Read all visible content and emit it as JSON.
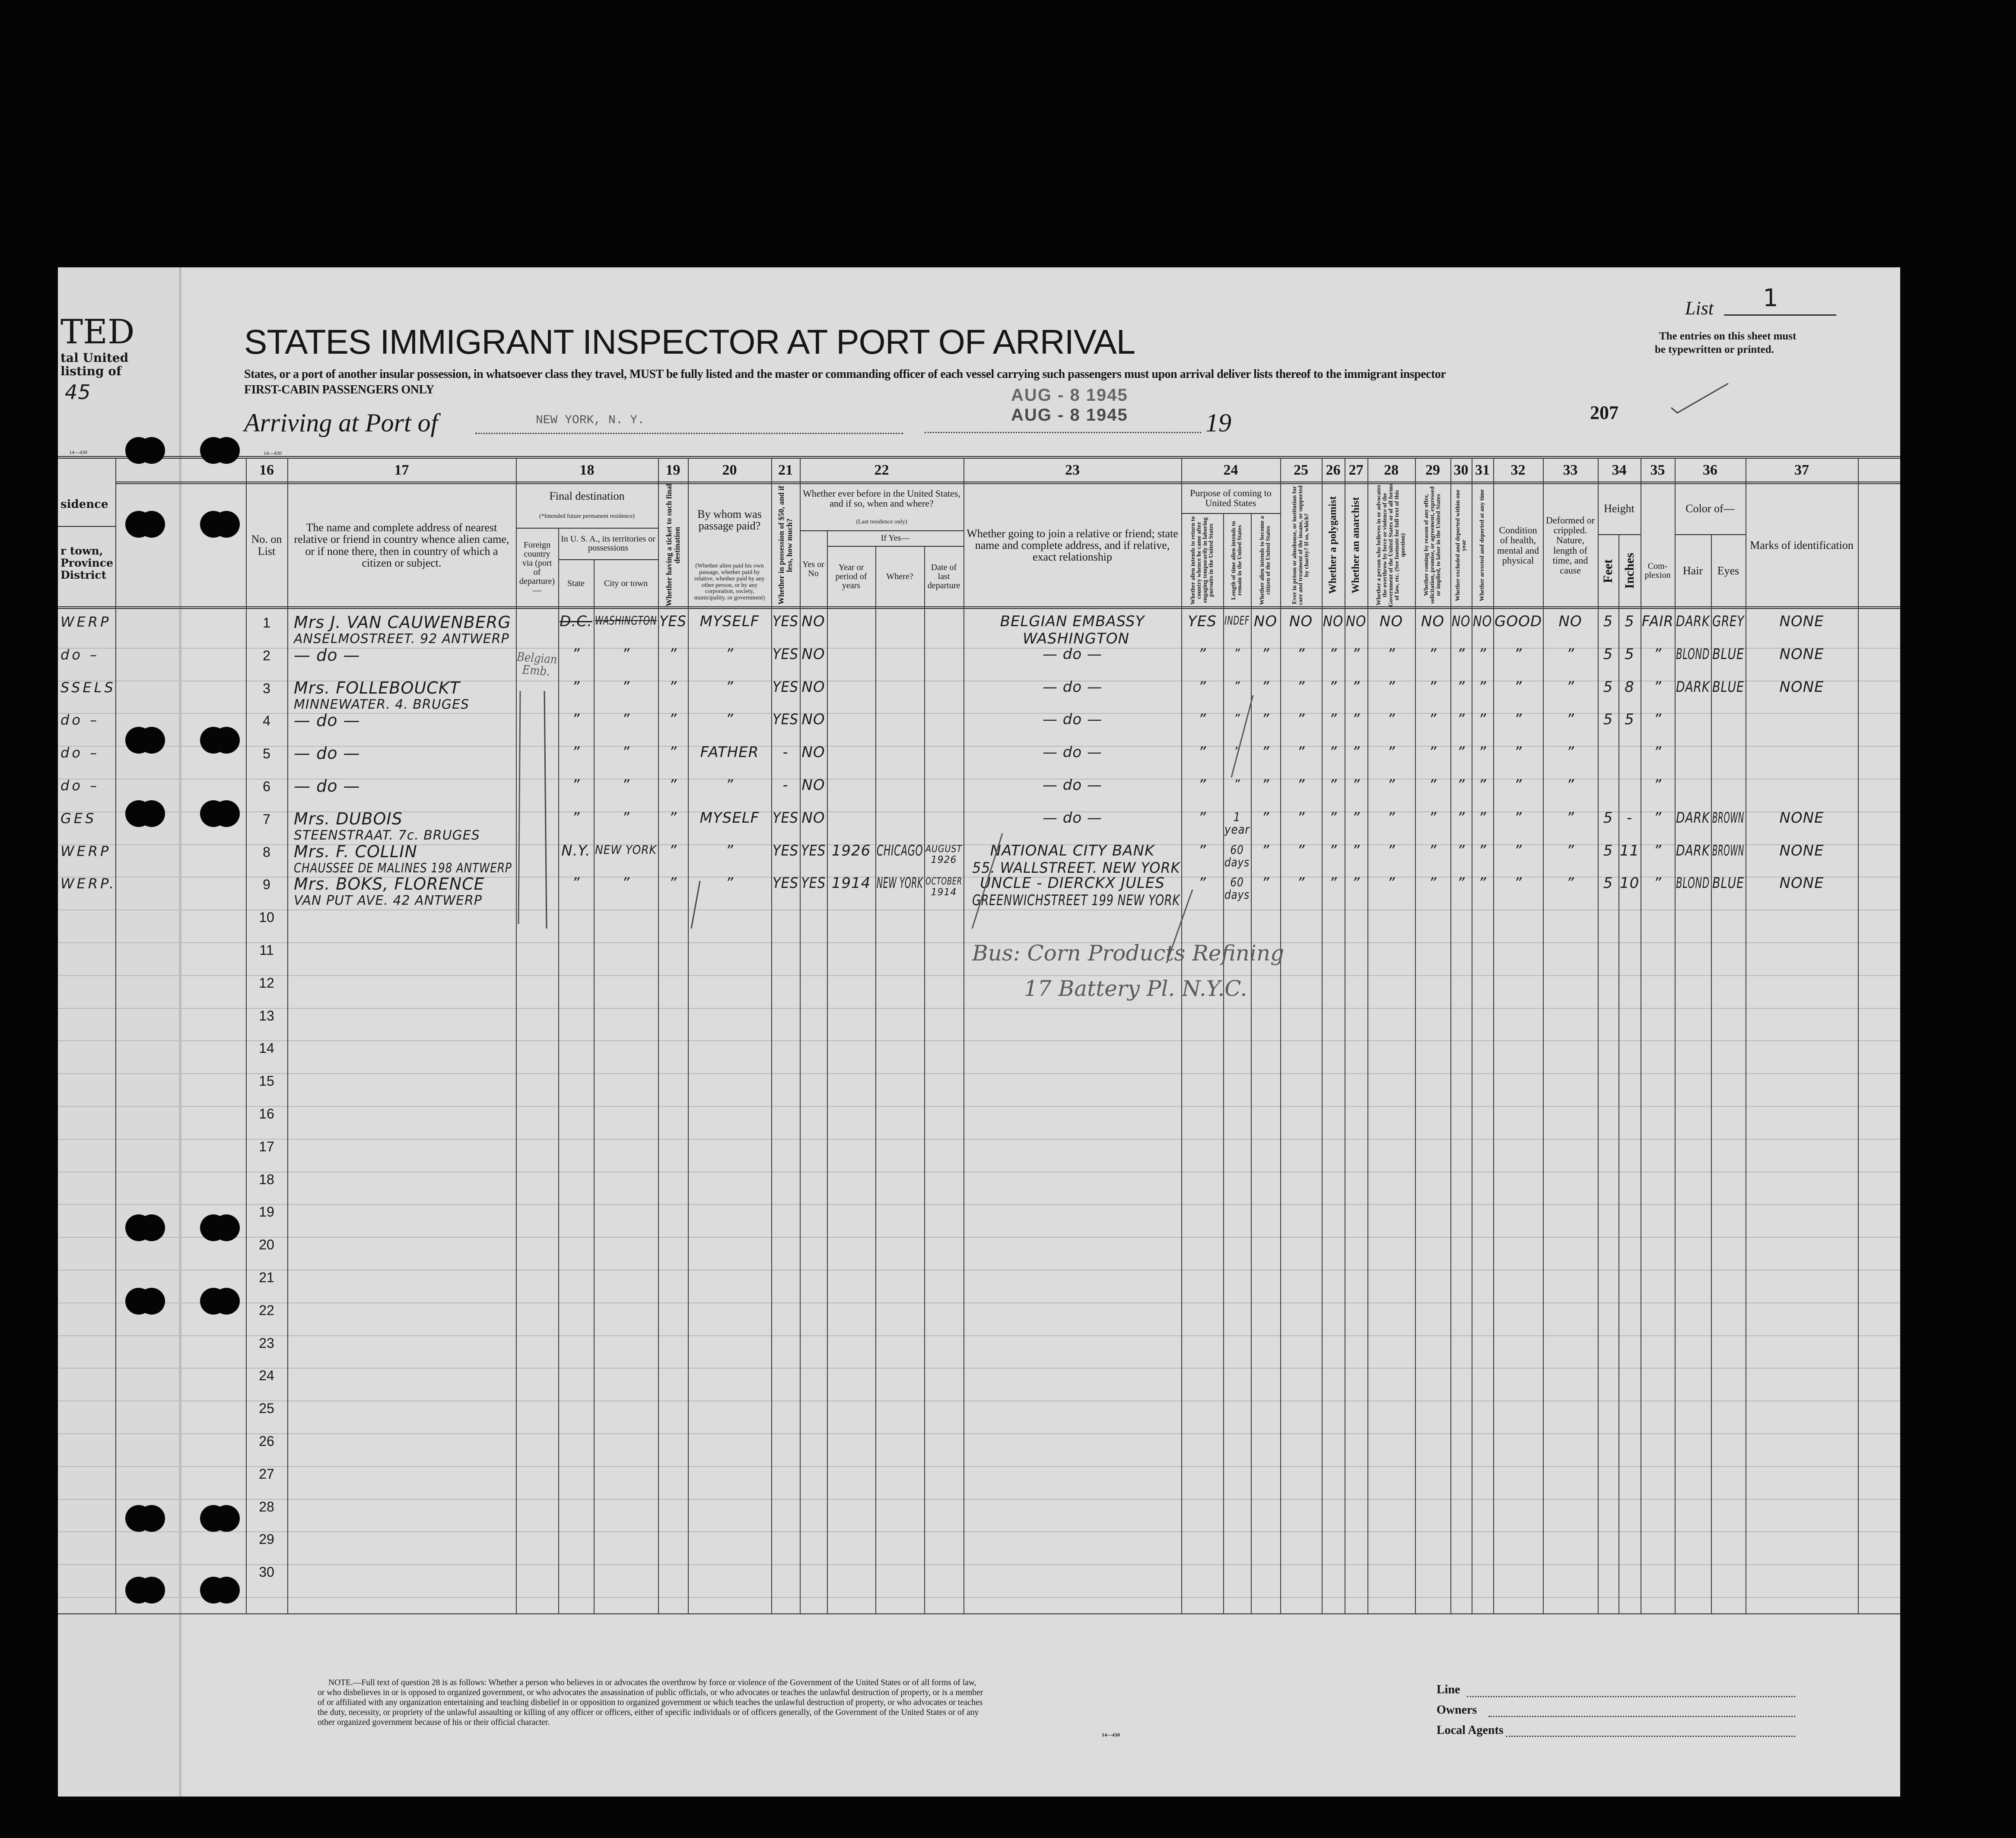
{
  "header": {
    "title": "STATES IMMIGRANT INSPECTOR AT PORT OF ARRIVAL",
    "instructions": "States, or a port of another insular possession, in whatsoever class they travel, MUST be fully listed and the master or commanding officer of each vessel carrying such passengers must upon arrival deliver lists thereof to the immigrant inspector",
    "class_note": "FIRST-CABIN PASSENGERS ONLY",
    "arriving_label": "Arriving at Port of",
    "port": "NEW YORK, N. Y.",
    "year_prefix": "19",
    "stamps": [
      "AUG - 8 1945",
      "AUG - 8 1945"
    ],
    "page_number": "207",
    "list_label": "List",
    "list_number": "1",
    "entries_note": [
      "The entries on this sheet must",
      "be typewritten or printed."
    ],
    "form_code": "14—430"
  },
  "left_fragment": {
    "title": "TED",
    "lines": [
      "tal United",
      "listing of"
    ],
    "year": "45",
    "form_code": "14—430",
    "col_header": [
      "sidence",
      "r town,",
      "Province",
      "District"
    ],
    "rows": [
      "WERP",
      "do –",
      "SSELS",
      "do –",
      "do –",
      "do –",
      "GES",
      "WERP",
      "WERP."
    ]
  },
  "columns": {
    "c16": {
      "num": "16",
      "label": "No. on List"
    },
    "c17": {
      "num": "17",
      "label": "The name and complete address of nearest relative or friend in country whence alien came, or if none there, then in country of which a citizen or subject."
    },
    "c18": {
      "num": "18",
      "label": "Final destination",
      "note": "(*Intended future permanent residence)",
      "foreign": "Foreign country via (port of departure)—",
      "usa": "In U. S. A., its territories or possessions",
      "state": "State",
      "city": "City or town"
    },
    "c19": {
      "num": "19",
      "label": "Whether having a ticket to such final destination"
    },
    "c20": {
      "num": "20",
      "label": "By whom was passage paid?",
      "note": "(Whether alien paid his own passage, whether paid by relative, whether paid by any other person, or by any corporation, society, municipality, or government)"
    },
    "c21": {
      "num": "21",
      "label": "Whether in possession of $50, and if less, how much?"
    },
    "c22": {
      "num": "22",
      "label": "Whether ever before in the United States, and if so, when and where?",
      "note": "(Last residence only)",
      "yes_no": "Yes or No",
      "if_yes": "If Yes—",
      "year": "Year or period of years",
      "where": "Where?",
      "date": "Date of last departure"
    },
    "c23": {
      "num": "23",
      "label": "Whether going to join a relative or friend; state name and complete address, and if relative, exact relationship"
    },
    "c24": {
      "num": "24",
      "label": "Purpose of coming to United States",
      "a": "Whether alien intends to return to country whence he came after engaging temporarily in laboring pursuits in the United States",
      "b": "Length of time alien intends to remain in the United States",
      "c": "Whether alien intends to become a citizen of the United States"
    },
    "c25": {
      "num": "25",
      "label": "Ever in prison or almshouse, or institution for care and treatment of the insane, or supported by charity? If so, which?"
    },
    "c26": {
      "num": "26",
      "label": "Whether a polygamist"
    },
    "c27": {
      "num": "27",
      "label": "Whether an anarchist"
    },
    "c28": {
      "num": "28",
      "label": "Whether a person who believes in or advocates the overthrow by force or violence of the Government of the United States or of all forms of law, etc. (See footnote for full text of this question)"
    },
    "c29": {
      "num": "29",
      "label": "Whether coming by reason of any offer, solicitation, promise, or agreement, expressed or implied, to labor in the United States"
    },
    "c30": {
      "num": "30",
      "label": "Whether excluded and deported within one year"
    },
    "c31": {
      "num": "31",
      "label": "Whether arrested and deported at any time"
    },
    "c32": {
      "num": "32",
      "label": "Condition of health, mental and physical"
    },
    "c33": {
      "num": "33",
      "label": "Deformed or crippled. Nature, length of time, and cause"
    },
    "c34": {
      "num": "34",
      "label": "Height",
      "feet": "Feet",
      "inches": "Inches"
    },
    "c35": {
      "num": "35",
      "label": "Com-plexion"
    },
    "c36": {
      "num": "36",
      "label": "Color of—",
      "hair": "Hair",
      "eyes": "Eyes"
    },
    "c37": {
      "num": "37",
      "label": "Marks of identification"
    }
  },
  "row_numbers": [
    "1",
    "2",
    "3",
    "4",
    "5",
    "6",
    "7",
    "8",
    "9",
    "10",
    "11",
    "12",
    "13",
    "14",
    "15",
    "16",
    "17",
    "18",
    "19",
    "20",
    "21",
    "22",
    "23",
    "24",
    "25",
    "26",
    "27",
    "28",
    "29",
    "30"
  ],
  "rows": [
    {
      "name": "Mrs J. VAN CAUWENBERG",
      "address": "ANSELMOSTREET. 92 ANTWERP",
      "state": "D.C.",
      "city": "WASHINGTON",
      "ticket": "YES",
      "paid_by": "MYSELF",
      "possession": "YES",
      "before": "NO",
      "joining": [
        "BELGIAN EMBASSY",
        "WASHINGTON"
      ],
      "purpose": "YES",
      "length": [
        "INDEF"
      ],
      "citizen": "NO",
      "prison": "NO",
      "polygamist": "NO",
      "anarchist": "NO",
      "q28": "NO",
      "q29": "NO",
      "excluded": "NO",
      "arrested": "NO",
      "health": "GOOD",
      "deformed": "NO",
      "feet": "5",
      "inches": "5",
      "complexion": "FAIR",
      "hair": "DARK",
      "eyes": "GREY",
      "marks": "NONE"
    },
    {
      "name": "— do —",
      "state": "”",
      "city": "”",
      "ticket": "”",
      "paid_by": "”",
      "possession": "YES",
      "before": "NO",
      "joining": [
        "— do —"
      ],
      "purpose": "”",
      "length": [
        "”"
      ],
      "citizen": "”",
      "prison": "”",
      "polygamist": "”",
      "anarchist": "”",
      "q28": "”",
      "q29": "”",
      "excluded": "”",
      "arrested": "”",
      "health": "”",
      "deformed": "”",
      "feet": "5",
      "inches": "5",
      "complexion": "”",
      "hair": "BLOND",
      "eyes": "BLUE",
      "marks": "NONE"
    },
    {
      "name": "Mrs. FOLLEBOUCKT",
      "address": "MINNEWATER. 4. BRUGES",
      "state": "”",
      "city": "”",
      "ticket": "”",
      "paid_by": "”",
      "possession": "YES",
      "before": "NO",
      "joining": [
        "— do —"
      ],
      "purpose": "”",
      "length": [
        "”"
      ],
      "citizen": "”",
      "prison": "”",
      "polygamist": "”",
      "anarchist": "”",
      "q28": "”",
      "q29": "”",
      "excluded": "”",
      "arrested": "”",
      "health": "”",
      "deformed": "”",
      "feet": "5",
      "inches": "8",
      "complexion": "”",
      "hair": "DARK",
      "eyes": "BLUE",
      "marks": "NONE"
    },
    {
      "name": "— do —",
      "state": "”",
      "city": "”",
      "ticket": "”",
      "paid_by": "”",
      "possession": "YES",
      "before": "NO",
      "joining": [
        "— do —"
      ],
      "purpose": "”",
      "length": [
        "”"
      ],
      "citizen": "”",
      "prison": "”",
      "polygamist": "”",
      "anarchist": "”",
      "q28": "”",
      "q29": "”",
      "excluded": "”",
      "arrested": "”",
      "health": "”",
      "deformed": "”",
      "feet": "5",
      "inches": "5",
      "complexion": "”"
    },
    {
      "name": "— do —",
      "state": "”",
      "city": "”",
      "ticket": "”",
      "paid_by": "FATHER",
      "possession": "-",
      "before": "NO",
      "joining": [
        "— do —"
      ],
      "purpose": "”",
      "length": [
        "”"
      ],
      "citizen": "”",
      "prison": "”",
      "polygamist": "”",
      "anarchist": "”",
      "q28": "”",
      "q29": "”",
      "excluded": "”",
      "arrested": "”",
      "health": "”",
      "deformed": "”",
      "complexion": "”"
    },
    {
      "name": "— do —",
      "state": "”",
      "city": "”",
      "ticket": "”",
      "paid_by": "”",
      "possession": "-",
      "before": "NO",
      "joining": [
        "— do —"
      ],
      "purpose": "”",
      "length": [
        "”"
      ],
      "citizen": "”",
      "prison": "”",
      "polygamist": "”",
      "anarchist": "”",
      "q28": "”",
      "q29": "”",
      "excluded": "”",
      "arrested": "”",
      "health": "”",
      "deformed": "”",
      "complexion": "”"
    },
    {
      "name": "Mrs. DUBOIS",
      "address": "STEENSTRAAT. 7c. BRUGES",
      "state": "”",
      "city": "”",
      "ticket": "”",
      "paid_by": "MYSELF",
      "possession": "YES",
      "before": "NO",
      "joining": [
        "— do —"
      ],
      "purpose": "”",
      "length": [
        "1 year"
      ],
      "citizen": "”",
      "prison": "”",
      "polygamist": "”",
      "anarchist": "”",
      "q28": "”",
      "q29": "”",
      "excluded": "”",
      "arrested": "”",
      "health": "”",
      "deformed": "”",
      "feet": "5",
      "inches": "-",
      "complexion": "”",
      "hair": "DARK",
      "eyes": "BROWN",
      "marks": "NONE"
    },
    {
      "name": "Mrs. F. COLLIN",
      "address": "CHAUSSEE DE MALINES 198 ANTWERP",
      "state": "N.Y.",
      "city": "NEW YORK",
      "ticket": "”",
      "paid_by": "”",
      "possession": "YES",
      "before": "YES",
      "year": "1926",
      "where": "CHICAGO",
      "date": [
        "AUGUST",
        "1926"
      ],
      "joining": [
        "NATIONAL CITY BANK",
        "55. WALLSTREET. NEW YORK"
      ],
      "purpose": "”",
      "length": [
        "60 days"
      ],
      "citizen": "”",
      "prison": "”",
      "polygamist": "”",
      "anarchist": "”",
      "q28": "”",
      "q29": "”",
      "excluded": "”",
      "arrested": "”",
      "health": "”",
      "deformed": "”",
      "feet": "5",
      "inches": "11",
      "complexion": "”",
      "hair": "DARK",
      "eyes": "BROWN",
      "marks": "NONE"
    },
    {
      "name": "Mrs. BOKS, FLORENCE",
      "address": "VAN PUT AVE. 42 ANTWERP",
      "state": "”",
      "city": "”",
      "ticket": "”",
      "paid_by": "”",
      "possession": "YES",
      "before": "YES",
      "year": "1914",
      "where": "NEW YORK",
      "date": [
        "OCTOBER",
        "1914"
      ],
      "joining": [
        "UNCLE - DIERCKX JULES",
        "GREENWICHSTREET 199 NEW YORK"
      ],
      "purpose": "”",
      "length": [
        "60 days"
      ],
      "citizen": "”",
      "prison": "”",
      "polygamist": "”",
      "anarchist": "”",
      "q28": "”",
      "q29": "”",
      "excluded": "”",
      "arrested": "”",
      "health": "”",
      "deformed": "”",
      "feet": "5",
      "inches": "10",
      "complexion": "”",
      "hair": "BLOND",
      "eyes": "BLUE",
      "marks": "NONE"
    }
  ],
  "annotations": {
    "belgian_emb": "Belgian Emb.",
    "business": "Bus: Corn Products Refining",
    "battery": "17 Battery Pl. N.Y.C."
  },
  "footer": {
    "note_lines": [
      "NOTE.—Full text of question 28 is as follows: Whether a person who believes in or advocates the overthrow by force or violence of the Government of the United States or of all forms of law,",
      "or who disbelieves in or is opposed to organized government, or who advocates the assassination of public officials, or who advocates or teaches the unlawful destruction of property, or is a member",
      "of or affiliated with any organization entertaining and teaching disbelief in or opposition to organized government or which teaches the unlawful destruction of property, or who advocates or teaches",
      "the duty, necessity, or propriety of the unlawful assaulting or killing of any officer or officers, either of specific individuals or of officers generally, of the Government of the United States or of any",
      "other organized government because of his or their official character."
    ],
    "form_code": "14—430",
    "line_label": "Line",
    "owners_label": "Owners",
    "agents_label": "Local Agents"
  }
}
